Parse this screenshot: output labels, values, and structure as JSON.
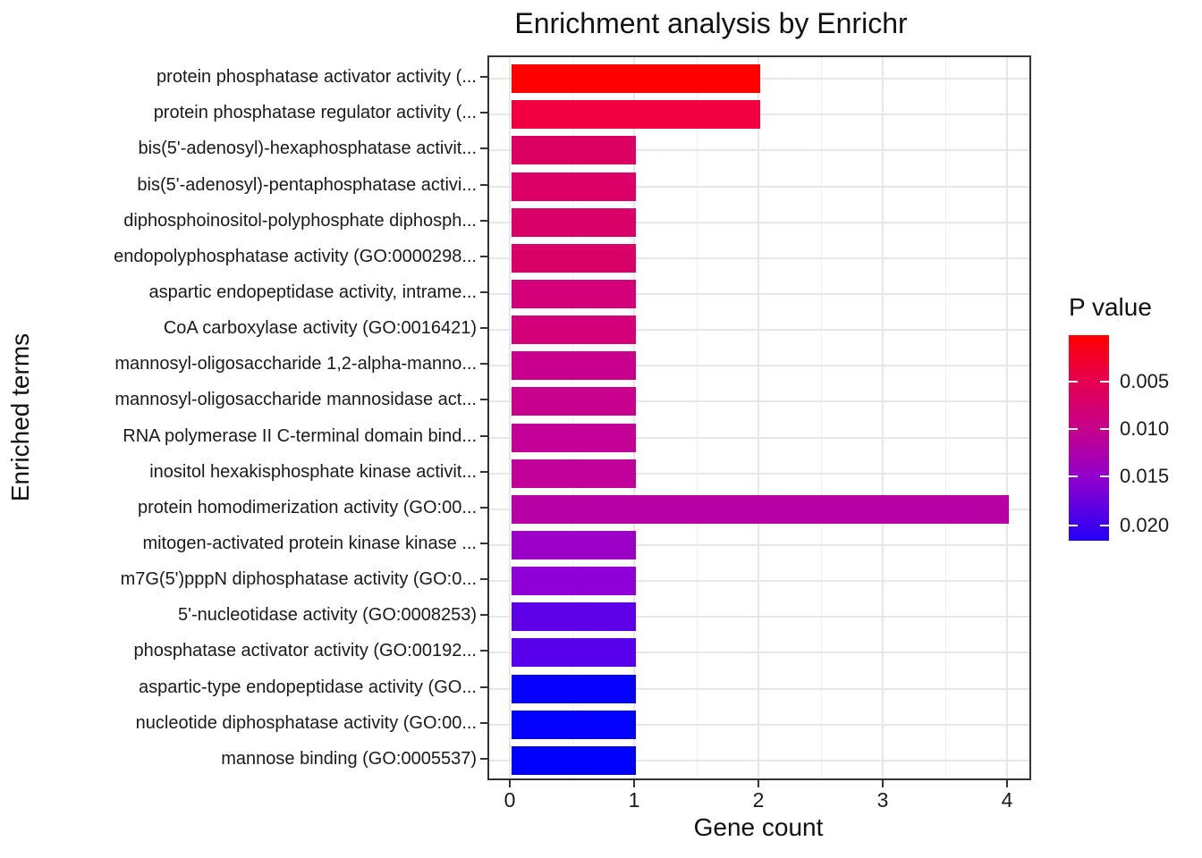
{
  "chart_data": {
    "type": "bar",
    "orientation": "horizontal",
    "title": "Enrichment analysis by Enrichr",
    "xlabel": "Gene count",
    "ylabel": "Enriched terms",
    "x_ticks": [
      0,
      1,
      2,
      3,
      4
    ],
    "xlim": [
      0,
      4.2
    ],
    "grid": true,
    "categories": [
      "protein phosphatase activator activity (...",
      "protein phosphatase regulator activity (...",
      "bis(5'-adenosyl)-hexaphosphatase activit...",
      "bis(5'-adenosyl)-pentaphosphatase activi...",
      "diphosphoinositol-polyphosphate diphosph...",
      "endopolyphosphatase activity (GO:0000298...",
      "aspartic endopeptidase activity, intrame...",
      "CoA carboxylase activity (GO:0016421)",
      "mannosyl-oligosaccharide 1,2-alpha-manno...",
      "mannosyl-oligosaccharide mannosidase act...",
      "RNA polymerase II C-terminal domain bind...",
      "inositol hexakisphosphate kinase activit...",
      "protein homodimerization activity (GO:00...",
      "mitogen-activated protein kinase kinase ...",
      "m7G(5')pppN diphosphatase activity (GO:0...",
      "5'-nucleotidase activity (GO:0008253)",
      "phosphatase activator activity (GO:00192...",
      "aspartic-type endopeptidase activity (GO...",
      "nucleotide diphosphatase activity (GO:00...",
      "mannose binding (GO:0005537)"
    ],
    "values": [
      2,
      2,
      1,
      1,
      1,
      1,
      1,
      1,
      1,
      1,
      1,
      1,
      4,
      1,
      1,
      1,
      1,
      1,
      1,
      1
    ],
    "bar_colors": [
      "#ff0000",
      "#f00040",
      "#dd0064",
      "#dc0066",
      "#db0068",
      "#db0068",
      "#d40079",
      "#d40079",
      "#c9008d",
      "#c9008d",
      "#c30096",
      "#c10099",
      "#b900a5",
      "#9c00c7",
      "#8f00d5",
      "#5c00e8",
      "#5800ec",
      "#0500fb",
      "#0300fd",
      "#0000ff"
    ],
    "legend": {
      "title": "P value",
      "labels": [
        "0.005",
        "0.010",
        "0.015",
        "0.020"
      ],
      "gradient_top_color": "#ff0000",
      "gradient_bottom_color": "#2400f8",
      "position": "right"
    }
  }
}
